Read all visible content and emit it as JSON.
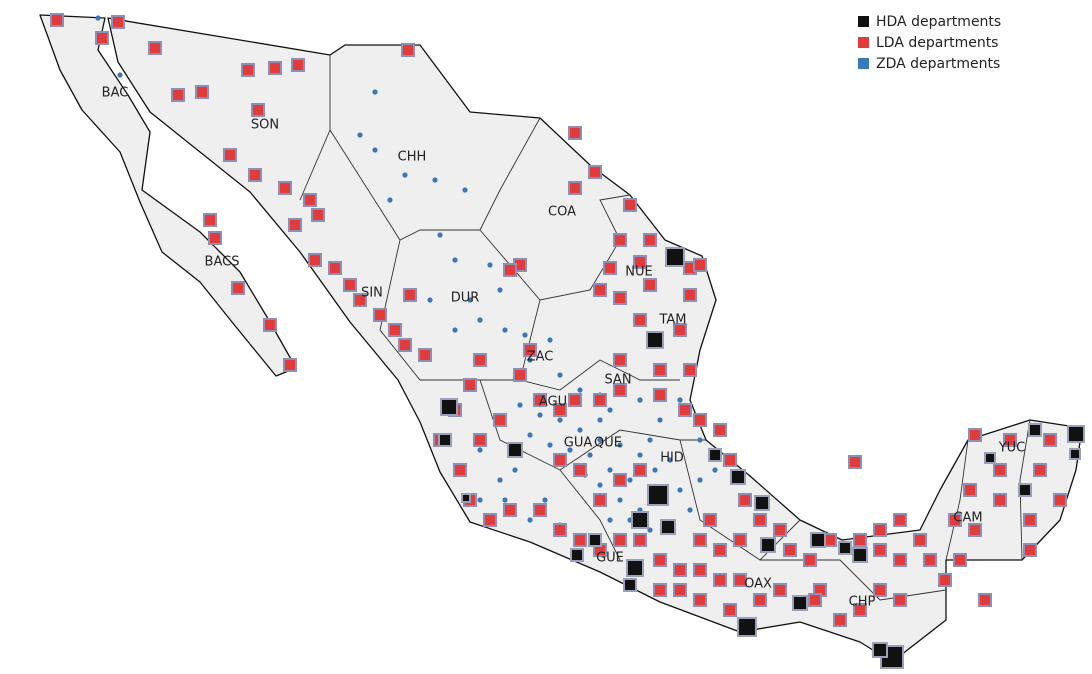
{
  "legend": [
    {
      "label": "HDA departments",
      "color": "#111111"
    },
    {
      "label": "LDA departments",
      "color": "#e23b3b"
    },
    {
      "label": "ZDA departments",
      "color": "#3a78b8"
    }
  ],
  "states": [
    "BAC",
    "SON",
    "CHH",
    "COA",
    "BACS",
    "NUE",
    "SIN",
    "DUR",
    "TAM",
    "ZAC",
    "SAN",
    "AGU",
    "GUA",
    "QUE",
    "HID",
    "YUC",
    "CAM",
    "GUE",
    "OAX",
    "CHP"
  ]
}
